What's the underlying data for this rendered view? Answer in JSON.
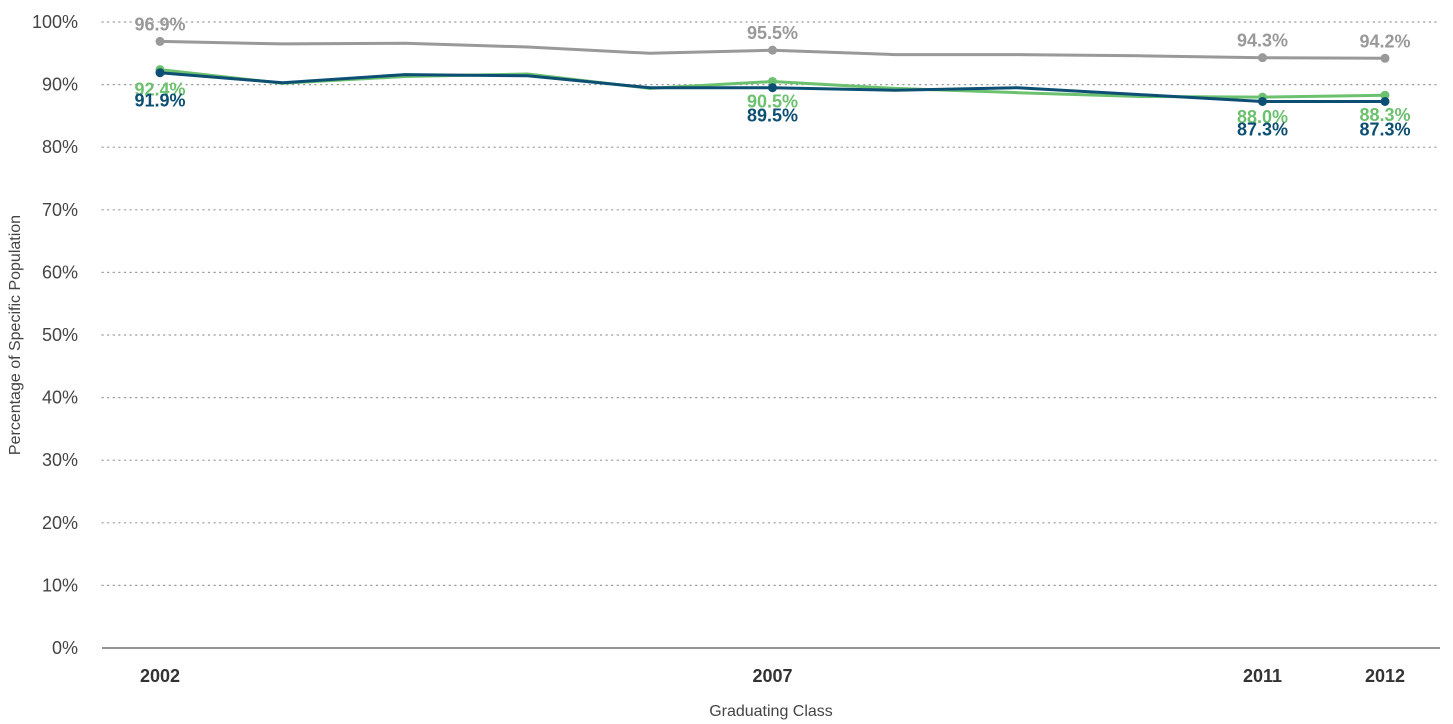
{
  "chart_data": {
    "type": "line",
    "title": "",
    "xlabel": "Graduating Class",
    "ylabel": "Percentage of Specific Population",
    "ylim": [
      0,
      100
    ],
    "y_ticks": [
      "0%",
      "10%",
      "20%",
      "30%",
      "40%",
      "50%",
      "60%",
      "70%",
      "80%",
      "90%",
      "100%"
    ],
    "x": [
      2002,
      2003,
      2004,
      2005,
      2006,
      2007,
      2008,
      2009,
      2010,
      2011,
      2012
    ],
    "x_tick_labels": [
      "2002",
      "2007",
      "2011",
      "2012"
    ],
    "grid": "horizontal dotted",
    "legend": "none",
    "series": [
      {
        "color": "#999999",
        "values": [
          96.9,
          96.5,
          96.6,
          96.0,
          95.0,
          95.5,
          94.8,
          94.8,
          94.6,
          94.3,
          94.2
        ],
        "markers": [
          0,
          5,
          9,
          10
        ],
        "labels": [
          {
            "i": 0,
            "text": "96.9%",
            "pos": "above"
          },
          {
            "i": 5,
            "text": "95.5%",
            "pos": "above"
          },
          {
            "i": 9,
            "text": "94.3%",
            "pos": "above"
          },
          {
            "i": 10,
            "text": "94.2%",
            "pos": "above"
          }
        ]
      },
      {
        "color": "#6cc16f",
        "values": [
          92.4,
          90.2,
          91.3,
          91.7,
          89.4,
          90.5,
          89.4,
          88.7,
          88.1,
          88.0,
          88.3
        ],
        "markers": [
          0,
          5,
          9,
          10
        ],
        "labels": [
          {
            "i": 0,
            "text": "92.4%",
            "pos": "below1"
          },
          {
            "i": 5,
            "text": "90.5%",
            "pos": "below1"
          },
          {
            "i": 9,
            "text": "88.0%",
            "pos": "below1"
          },
          {
            "i": 10,
            "text": "88.3%",
            "pos": "below1"
          }
        ]
      },
      {
        "color": "#0c4f73",
        "values": [
          91.9,
          90.3,
          91.6,
          91.4,
          89.5,
          89.5,
          89.1,
          89.5,
          88.4,
          87.3,
          87.3
        ],
        "markers": [
          0,
          5,
          9,
          10
        ],
        "labels": [
          {
            "i": 0,
            "text": "91.9%",
            "pos": "below2"
          },
          {
            "i": 5,
            "text": "89.5%",
            "pos": "below2"
          },
          {
            "i": 9,
            "text": "87.3%",
            "pos": "below2"
          },
          {
            "i": 10,
            "text": "87.3%",
            "pos": "below2"
          }
        ]
      }
    ]
  }
}
